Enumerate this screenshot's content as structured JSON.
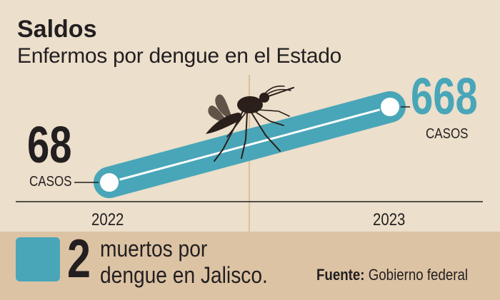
{
  "header": {
    "title": "Saldos",
    "subtitle": "Enfermos por dengue en el Estado"
  },
  "chart_data": {
    "type": "line",
    "title": "Saldos",
    "subtitle": "Enfermos por dengue en el Estado",
    "categories": [
      "2022",
      "2023"
    ],
    "series": [
      {
        "values": [
          68,
          668
        ],
        "data_labels": [
          "68",
          "668"
        ]
      }
    ],
    "value_unit_label": "CASOS",
    "grid": false,
    "colors": {
      "line": "#49a6b8",
      "inner_line": "#ffffff",
      "highlight": "#49a6b8",
      "text": "#231f20",
      "background": "#ecdfcb"
    }
  },
  "labels": {
    "left_value": "68",
    "left_unit": "CASOS",
    "right_value": "668",
    "right_unit": "CASOS",
    "year_left": "2022",
    "year_right": "2023"
  },
  "footer": {
    "icon": "skull-icon",
    "deaths_value": "2",
    "deaths_line1": "muertos por",
    "deaths_line2": "dengue en Jalisco.",
    "source_label": "Fuente:",
    "source_value": "Gobierno federal",
    "colors": {
      "band": "#dcc3a4",
      "icon_box": "#49a6b8"
    }
  },
  "illustration": {
    "name": "mosquito-illustration"
  }
}
